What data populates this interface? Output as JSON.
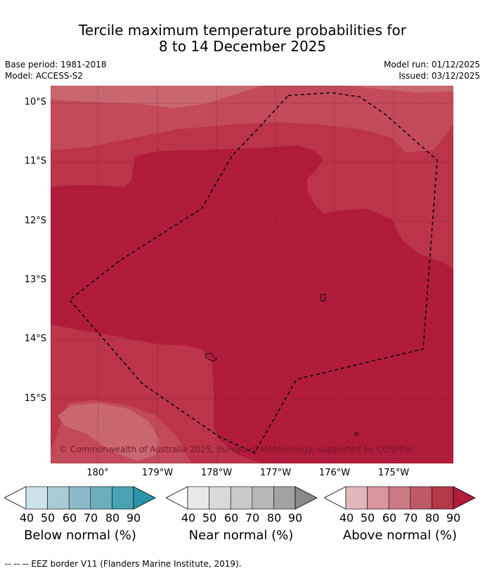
{
  "title_line1": "Tercile maximum temperature probabilities for",
  "title_line2": "8 to 14 December 2025",
  "base_period": "Base period: 1981-2018",
  "model": "Model: ACCESS-S2",
  "model_run": "Model run: 01/12/2025",
  "issued": "Issued: 03/12/2025",
  "lat_labels": [
    "10°S",
    "11°S",
    "12°S",
    "13°S",
    "14°S",
    "15°S"
  ],
  "lon_labels": [
    "180°",
    "179°W",
    "178°W",
    "177°W",
    "176°W",
    "175°W"
  ],
  "credit": "© Commonwealth of Australia 2025, Bureau of Meteorology, supported by COSPPac",
  "colorbars": {
    "ticks": [
      "40",
      "50",
      "60",
      "70",
      "80",
      "90"
    ],
    "below": {
      "label": "Below normal (%)",
      "colors": [
        "#cde3ea",
        "#a9cbd3",
        "#8bbac6",
        "#6aaebb",
        "#49a2b1",
        "#2b95a9"
      ]
    },
    "near": {
      "label": "Near normal (%)",
      "colors": [
        "#e8e8e8",
        "#d9d9d9",
        "#c9c9c9",
        "#b7b7b7",
        "#a2a2a2",
        "#8a8a8a"
      ]
    },
    "above": {
      "label": "Above normal (%)",
      "colors": [
        "#e2b6bc",
        "#d9949c",
        "#cb7983",
        "#c05966",
        "#b6364a",
        "#b11c3b"
      ]
    }
  },
  "footer": "--  --  -- EEZ border V11 (Flanders Marine Institute, 2019).",
  "map_colors": {
    "p60": "#c96670",
    "p70": "#c24a5a",
    "p80": "#bb3449",
    "p90": "#b11c3b"
  }
}
